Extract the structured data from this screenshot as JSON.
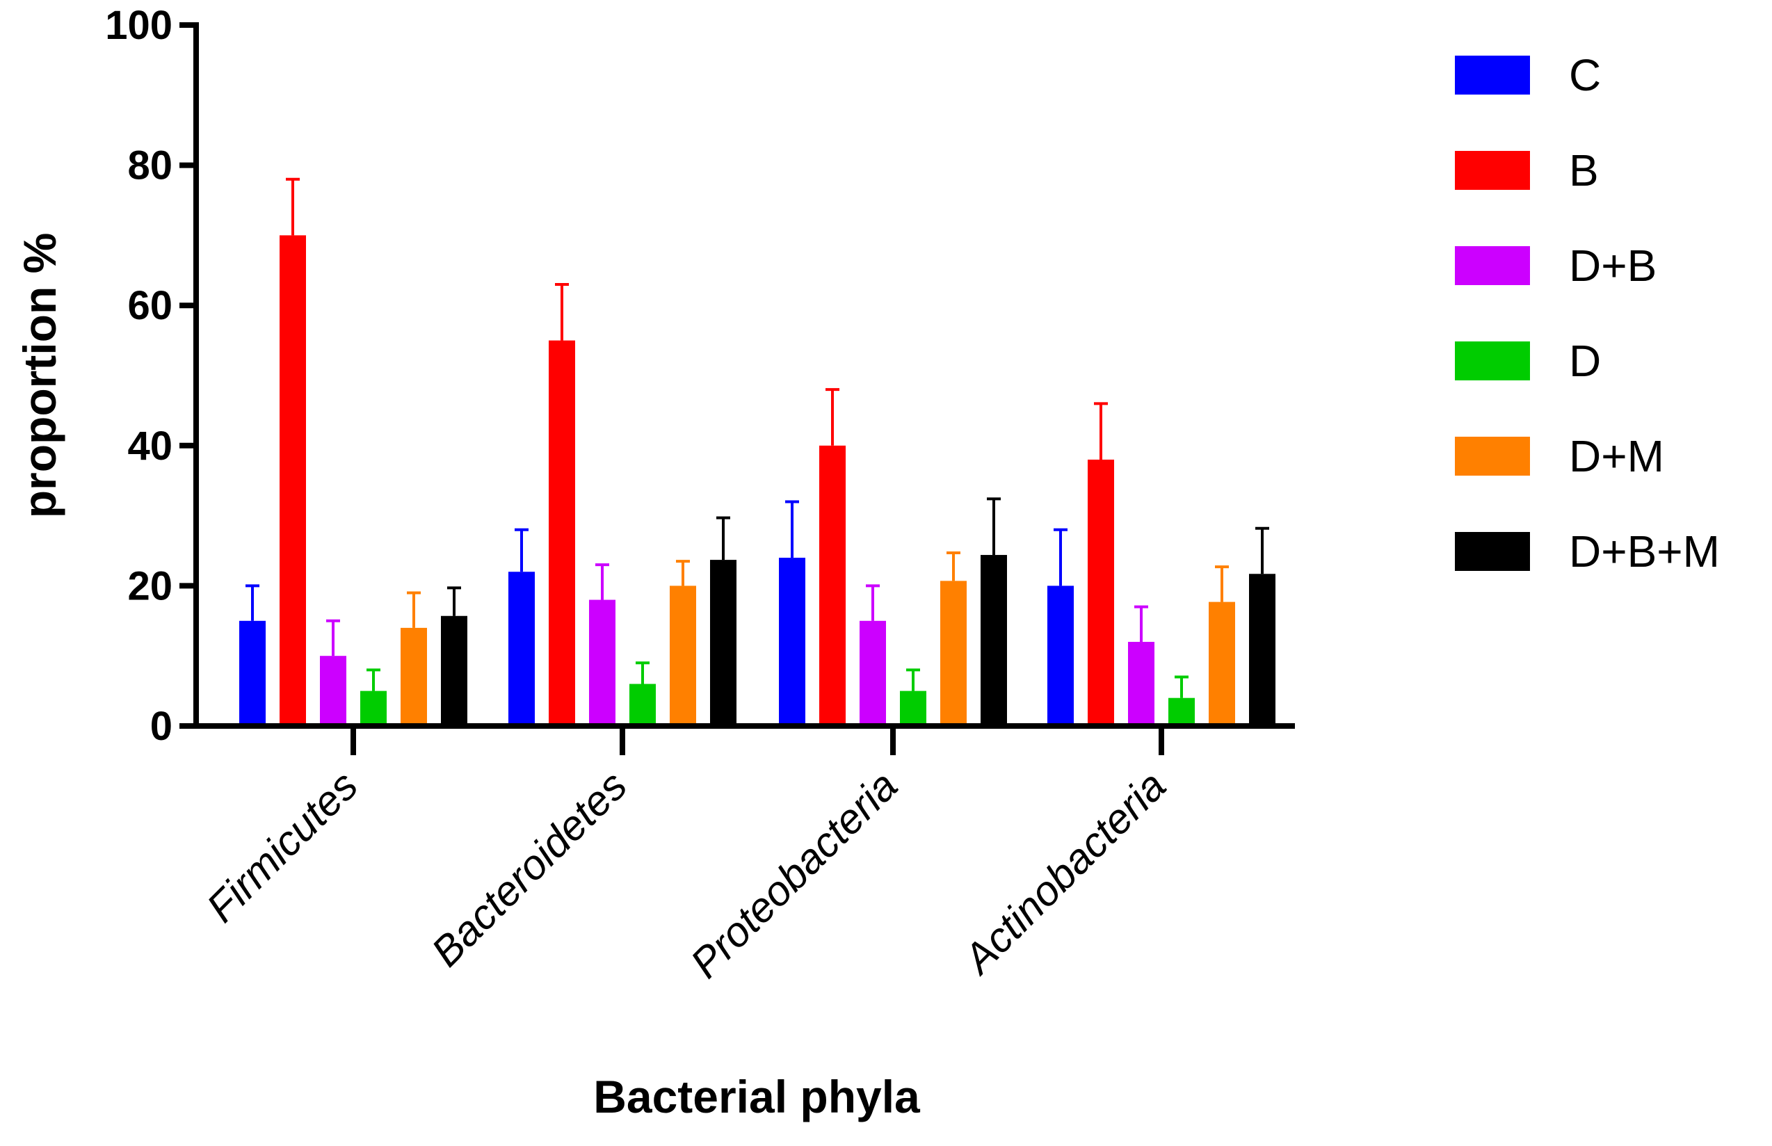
{
  "chart_data": {
    "type": "bar",
    "title": "",
    "xlabel": "Bacterial phyla",
    "ylabel": "proportion %",
    "ylim": [
      0,
      100
    ],
    "yticks": [
      0,
      20,
      40,
      60,
      80,
      100
    ],
    "grid": false,
    "legend_position": "top-right",
    "categories": [
      "Firmicutes",
      "Bacteroidetes",
      "Proteobacteria",
      "Actinobacteria"
    ],
    "series": [
      {
        "name": "C",
        "color": "#0000ff",
        "values": [
          15,
          22,
          24,
          20
        ],
        "errors": [
          5,
          6,
          8,
          8
        ]
      },
      {
        "name": "B",
        "color": "#ff0000",
        "values": [
          70,
          55,
          40,
          38
        ],
        "errors": [
          8,
          8,
          8,
          8
        ]
      },
      {
        "name": "D+B",
        "color": "#cc00ff",
        "values": [
          10,
          18,
          15,
          12
        ],
        "errors": [
          5,
          5,
          5,
          5
        ]
      },
      {
        "name": "D",
        "color": "#00cc00",
        "values": [
          5,
          6,
          5,
          4
        ],
        "errors": [
          3,
          3,
          3,
          3
        ]
      },
      {
        "name": "D+M",
        "color": "#ff8000",
        "values": [
          14,
          20,
          20.7,
          17.7
        ],
        "errors": [
          5,
          3.5,
          4,
          5
        ]
      },
      {
        "name": "D+B+M",
        "color": "#000000",
        "values": [
          15.7,
          23.7,
          24.4,
          21.7
        ],
        "errors": [
          4,
          6,
          8,
          6.5
        ]
      }
    ]
  }
}
